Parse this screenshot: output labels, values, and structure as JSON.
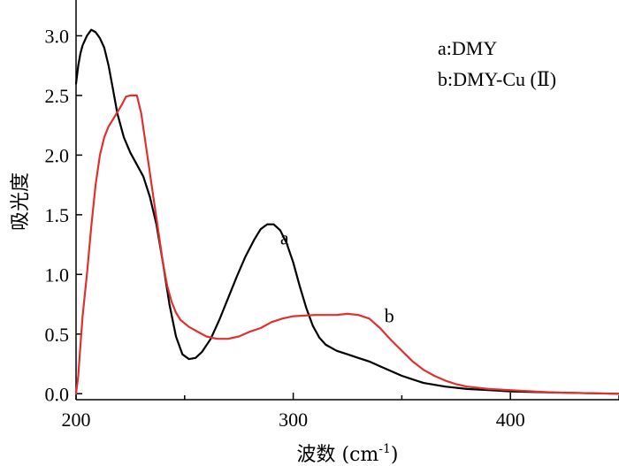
{
  "chart_data": {
    "type": "line",
    "xlabel": "波数 (cm",
    "xlabel_sup": "-1",
    "xlabel_close": ")",
    "ylabel": "吸光度",
    "xlim": [
      200,
      450
    ],
    "ylim": [
      -0.05,
      3.3
    ],
    "x_ticks": [
      200,
      300,
      400
    ],
    "y_ticks": [
      0.0,
      0.5,
      1.0,
      1.5,
      2.0,
      2.5,
      3.0
    ],
    "y_tick_labels": [
      "0.0",
      "0.5",
      "1.0",
      "1.5",
      "2.0",
      "2.5",
      "3.0"
    ],
    "grid": false,
    "legend": {
      "position": "top-right",
      "entries": [
        "a:DMY",
        "b:DMY-Cu (Ⅱ)"
      ]
    },
    "series": [
      {
        "label": "a",
        "color": "#000000",
        "label_anchor": {
          "x": 294,
          "y": 1.25
        },
        "points": [
          [
            200,
            2.6
          ],
          [
            201,
            2.75
          ],
          [
            202,
            2.85
          ],
          [
            203,
            2.92
          ],
          [
            205,
            3.0
          ],
          [
            207,
            3.05
          ],
          [
            209,
            3.03
          ],
          [
            211,
            2.98
          ],
          [
            213,
            2.9
          ],
          [
            215,
            2.75
          ],
          [
            217,
            2.55
          ],
          [
            219,
            2.35
          ],
          [
            222,
            2.15
          ],
          [
            225,
            2.02
          ],
          [
            228,
            1.92
          ],
          [
            231,
            1.82
          ],
          [
            234,
            1.65
          ],
          [
            237,
            1.42
          ],
          [
            240,
            1.1
          ],
          [
            243,
            0.75
          ],
          [
            246,
            0.48
          ],
          [
            249,
            0.33
          ],
          [
            252,
            0.29
          ],
          [
            255,
            0.3
          ],
          [
            258,
            0.35
          ],
          [
            262,
            0.46
          ],
          [
            266,
            0.62
          ],
          [
            270,
            0.8
          ],
          [
            274,
            0.98
          ],
          [
            278,
            1.15
          ],
          [
            282,
            1.29
          ],
          [
            285,
            1.38
          ],
          [
            288,
            1.42
          ],
          [
            291,
            1.42
          ],
          [
            294,
            1.37
          ],
          [
            297,
            1.26
          ],
          [
            300,
            1.1
          ],
          [
            303,
            0.9
          ],
          [
            306,
            0.72
          ],
          [
            309,
            0.57
          ],
          [
            312,
            0.47
          ],
          [
            315,
            0.41
          ],
          [
            320,
            0.36
          ],
          [
            325,
            0.33
          ],
          [
            330,
            0.3
          ],
          [
            335,
            0.27
          ],
          [
            340,
            0.23
          ],
          [
            345,
            0.19
          ],
          [
            350,
            0.15
          ],
          [
            355,
            0.12
          ],
          [
            360,
            0.09
          ],
          [
            370,
            0.06
          ],
          [
            380,
            0.04
          ],
          [
            390,
            0.03
          ],
          [
            400,
            0.02
          ],
          [
            420,
            0.01
          ],
          [
            450,
            0.0
          ]
        ]
      },
      {
        "label": "b",
        "color": "#e03030",
        "label_anchor": {
          "x": 342,
          "y": 0.6
        },
        "points": [
          [
            200,
            0.0
          ],
          [
            201,
            0.15
          ],
          [
            202,
            0.4
          ],
          [
            203,
            0.65
          ],
          [
            205,
            1.0
          ],
          [
            207,
            1.4
          ],
          [
            209,
            1.75
          ],
          [
            211,
            2.0
          ],
          [
            213,
            2.15
          ],
          [
            215,
            2.24
          ],
          [
            217,
            2.3
          ],
          [
            219,
            2.36
          ],
          [
            221,
            2.42
          ],
          [
            223,
            2.49
          ],
          [
            225,
            2.5
          ],
          [
            228,
            2.5
          ],
          [
            230,
            2.35
          ],
          [
            232,
            2.1
          ],
          [
            234,
            1.85
          ],
          [
            236,
            1.6
          ],
          [
            238,
            1.35
          ],
          [
            240,
            1.1
          ],
          [
            242,
            0.9
          ],
          [
            244,
            0.77
          ],
          [
            246,
            0.68
          ],
          [
            248,
            0.62
          ],
          [
            252,
            0.56
          ],
          [
            256,
            0.52
          ],
          [
            260,
            0.48
          ],
          [
            265,
            0.46
          ],
          [
            270,
            0.46
          ],
          [
            275,
            0.48
          ],
          [
            280,
            0.52
          ],
          [
            285,
            0.55
          ],
          [
            290,
            0.6
          ],
          [
            295,
            0.63
          ],
          [
            300,
            0.65
          ],
          [
            310,
            0.66
          ],
          [
            320,
            0.66
          ],
          [
            325,
            0.67
          ],
          [
            330,
            0.66
          ],
          [
            335,
            0.63
          ],
          [
            340,
            0.55
          ],
          [
            345,
            0.45
          ],
          [
            350,
            0.36
          ],
          [
            355,
            0.27
          ],
          [
            360,
            0.2
          ],
          [
            365,
            0.15
          ],
          [
            370,
            0.11
          ],
          [
            375,
            0.08
          ],
          [
            380,
            0.06
          ],
          [
            390,
            0.04
          ],
          [
            400,
            0.03
          ],
          [
            410,
            0.02
          ],
          [
            420,
            0.01
          ],
          [
            450,
            0.0
          ]
        ]
      }
    ]
  }
}
